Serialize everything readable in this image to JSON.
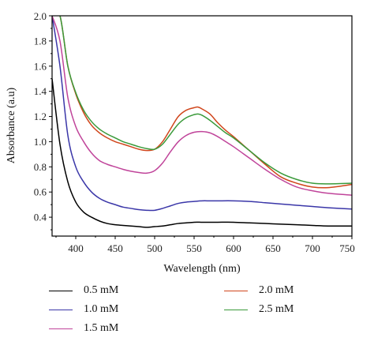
{
  "chart_data": {
    "type": "line",
    "xlabel": "Wavelength (nm)",
    "ylabel": "Absorbance (a.u)",
    "xlim": [
      370,
      750
    ],
    "ylim": [
      0.25,
      2.0
    ],
    "xticks": [
      400,
      450,
      500,
      550,
      600,
      650,
      700,
      750
    ],
    "yticks": [
      0.4,
      0.6,
      0.8,
      1.0,
      1.2,
      1.4,
      1.6,
      1.8,
      2.0
    ],
    "xtick_labels": [
      "400",
      "450",
      "500",
      "550",
      "600",
      "650",
      "700",
      "750"
    ],
    "ytick_labels": [
      "0.4",
      "0.6",
      "0.8",
      "1.0",
      "1.2",
      "1.4",
      "1.6",
      "1.8",
      "2.0"
    ],
    "grid": false,
    "legend_position": "bottom",
    "series": [
      {
        "name": "0.5 mM",
        "color": "#000000",
        "x": [
          370,
          380,
          390,
          400,
          410,
          420,
          430,
          440,
          450,
          460,
          470,
          480,
          490,
          500,
          510,
          520,
          530,
          540,
          550,
          560,
          570,
          580,
          600,
          620,
          640,
          660,
          680,
          700,
          720,
          750
        ],
        "y": [
          1.5,
          0.98,
          0.68,
          0.52,
          0.44,
          0.4,
          0.37,
          0.35,
          0.34,
          0.335,
          0.33,
          0.325,
          0.32,
          0.325,
          0.33,
          0.34,
          0.35,
          0.355,
          0.36,
          0.36,
          0.36,
          0.36,
          0.36,
          0.355,
          0.35,
          0.345,
          0.34,
          0.335,
          0.33,
          0.33
        ]
      },
      {
        "name": "1.0 mM",
        "color": "#3a36a8",
        "x": [
          370,
          380,
          390,
          400,
          410,
          420,
          430,
          440,
          450,
          460,
          470,
          480,
          490,
          500,
          510,
          520,
          530,
          540,
          550,
          560,
          570,
          580,
          600,
          620,
          640,
          660,
          680,
          700,
          720,
          750
        ],
        "y": [
          2.0,
          1.6,
          1.05,
          0.8,
          0.68,
          0.6,
          0.55,
          0.52,
          0.5,
          0.48,
          0.47,
          0.46,
          0.455,
          0.455,
          0.47,
          0.49,
          0.51,
          0.52,
          0.525,
          0.53,
          0.53,
          0.53,
          0.53,
          0.525,
          0.515,
          0.505,
          0.495,
          0.485,
          0.475,
          0.465
        ]
      },
      {
        "name": "1.5 mM",
        "color": "#c0449a",
        "x": [
          370,
          380,
          390,
          400,
          410,
          420,
          430,
          440,
          450,
          460,
          470,
          480,
          490,
          500,
          510,
          520,
          530,
          540,
          550,
          560,
          570,
          580,
          590,
          600,
          620,
          640,
          660,
          680,
          700,
          720,
          750
        ],
        "y": [
          2.0,
          1.8,
          1.35,
          1.12,
          1.0,
          0.91,
          0.85,
          0.82,
          0.8,
          0.78,
          0.765,
          0.755,
          0.75,
          0.77,
          0.83,
          0.92,
          1.0,
          1.05,
          1.075,
          1.08,
          1.07,
          1.04,
          1.0,
          0.96,
          0.87,
          0.78,
          0.7,
          0.64,
          0.61,
          0.59,
          0.575
        ]
      },
      {
        "name": "2.0 mM",
        "color": "#d0461c",
        "x": [
          370,
          380,
          390,
          400,
          410,
          420,
          430,
          440,
          450,
          460,
          470,
          480,
          490,
          500,
          510,
          520,
          530,
          540,
          550,
          555,
          560,
          570,
          580,
          590,
          600,
          620,
          640,
          660,
          680,
          700,
          720,
          750
        ],
        "y": [
          2.0,
          2.0,
          1.6,
          1.38,
          1.23,
          1.13,
          1.07,
          1.03,
          1.0,
          0.98,
          0.96,
          0.94,
          0.93,
          0.94,
          1.0,
          1.1,
          1.2,
          1.25,
          1.27,
          1.275,
          1.26,
          1.22,
          1.15,
          1.09,
          1.04,
          0.93,
          0.82,
          0.72,
          0.67,
          0.64,
          0.635,
          0.66
        ]
      },
      {
        "name": "2.5 mM",
        "color": "#3a9a3a",
        "x": [
          370,
          380,
          390,
          400,
          410,
          420,
          430,
          440,
          450,
          460,
          470,
          480,
          490,
          500,
          510,
          520,
          530,
          540,
          550,
          555,
          560,
          570,
          580,
          590,
          600,
          620,
          640,
          660,
          680,
          700,
          720,
          750
        ],
        "y": [
          2.0,
          2.0,
          1.6,
          1.39,
          1.25,
          1.16,
          1.1,
          1.06,
          1.03,
          1.0,
          0.98,
          0.96,
          0.945,
          0.94,
          0.98,
          1.06,
          1.14,
          1.19,
          1.215,
          1.22,
          1.21,
          1.17,
          1.12,
          1.07,
          1.03,
          0.93,
          0.83,
          0.75,
          0.7,
          0.67,
          0.665,
          0.67
        ]
      }
    ]
  }
}
